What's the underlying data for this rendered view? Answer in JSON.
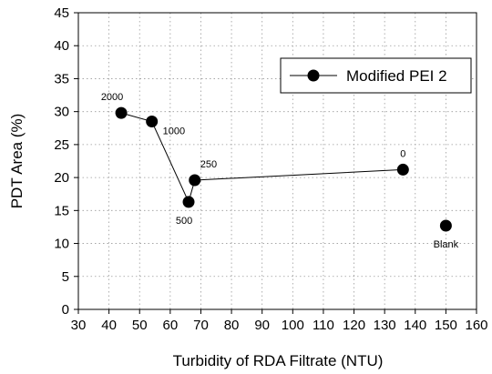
{
  "chart_data": {
    "type": "line",
    "title": "",
    "xlabel": "Turbidity of RDA Filtrate (NTU)",
    "ylabel": "PDT Area (%)",
    "xlim": [
      30,
      160
    ],
    "ylim": [
      0,
      45
    ],
    "xticks": [
      30,
      40,
      50,
      60,
      70,
      80,
      90,
      100,
      110,
      120,
      130,
      140,
      150,
      160
    ],
    "yticks": [
      0,
      5,
      10,
      15,
      20,
      25,
      30,
      35,
      40,
      45
    ],
    "grid": "dotted",
    "legend": {
      "position": "top-right"
    },
    "series": [
      {
        "name": "Modified PEI 2",
        "color": "#000000",
        "marker": "circle",
        "points": [
          {
            "x": 44,
            "y": 29.8,
            "label": "2000"
          },
          {
            "x": 54,
            "y": 28.5,
            "label": "1000"
          },
          {
            "x": 66,
            "y": 16.3,
            "label": "500"
          },
          {
            "x": 68,
            "y": 19.6,
            "label": "250"
          },
          {
            "x": 136,
            "y": 21.2,
            "label": "0"
          }
        ]
      }
    ],
    "extra_points": [
      {
        "x": 150,
        "y": 12.7,
        "label": "Blank"
      }
    ]
  }
}
